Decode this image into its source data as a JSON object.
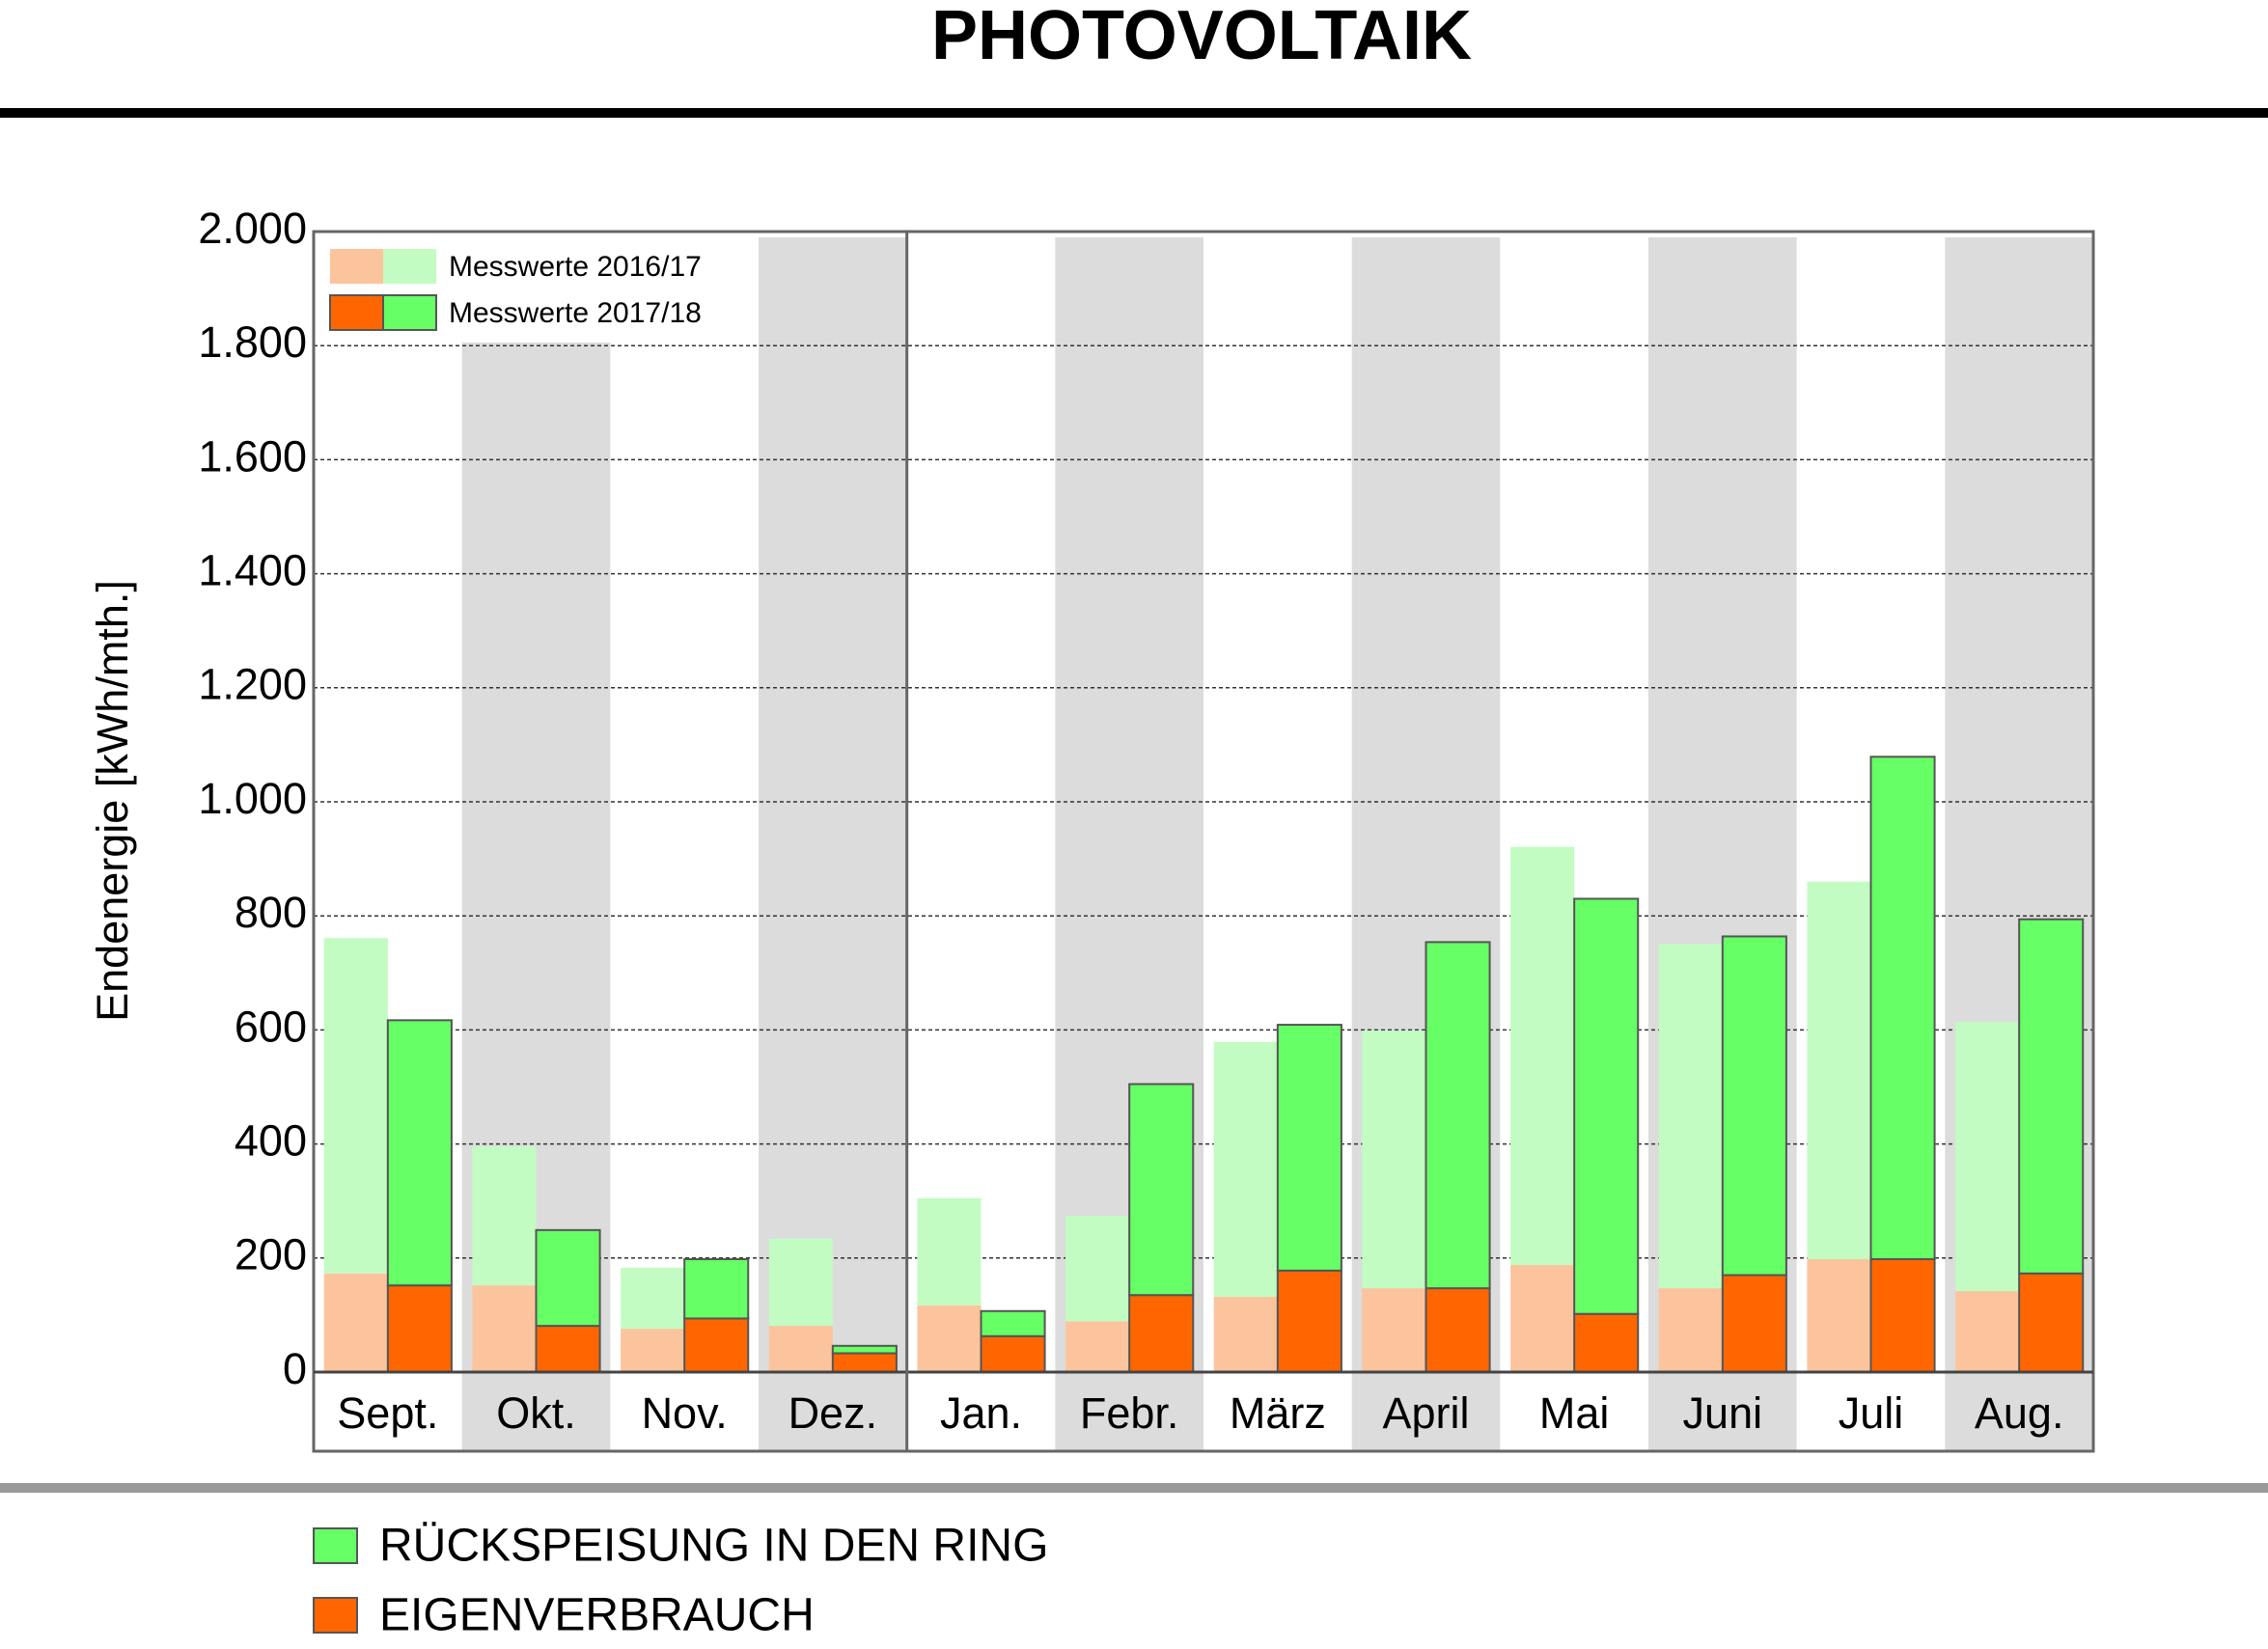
{
  "chart_data": {
    "type": "stacked-bar-pairs",
    "title": "PHOTOVOLTAIK",
    "y_label": "Endenergie [kWh/mth.]",
    "categories": [
      "Sept.",
      "Okt.",
      "Nov.",
      "Dez.",
      "Jan.",
      "Febr.",
      "März",
      "April",
      "Mai",
      "Juni",
      "Juli",
      "Aug."
    ],
    "segment_names": [
      "EIGENVERBRAUCH",
      "RÜCKSPEISUNG IN DEN RING"
    ],
    "groups": [
      {
        "name": "Messwerte 2016/17",
        "segments": [
          {
            "color": "#fcc49c",
            "values": [
              173,
              152,
              76,
              81,
              117,
              89,
              132,
              147,
              188,
              147,
              198,
              142
            ]
          },
          {
            "color": "#c2fcc2",
            "values": [
              588,
              244,
              107,
              153,
              188,
              185,
              447,
              452,
              733,
              604,
              662,
              472
            ]
          }
        ]
      },
      {
        "name": "Messwerte 2017/18",
        "segments": [
          {
            "color": "#ff6600",
            "values": [
              152,
              81,
              94,
              33,
              63,
              135,
              178,
              147,
              102,
              170,
              198,
              173
            ]
          },
          {
            "color": "#66ff66",
            "values": [
              465,
              168,
              104,
              13,
              44,
              370,
              431,
              607,
              728,
              594,
              881,
              621
            ]
          }
        ]
      }
    ],
    "ylim": [
      0,
      2000
    ],
    "yticks": [
      0,
      200,
      400,
      600,
      800,
      {
        "value": 1000,
        "label": "1.000"
      },
      {
        "value": 1200,
        "label": "1.200"
      },
      {
        "value": 1400,
        "label": "1.400"
      },
      {
        "value": 1600,
        "label": "1.600"
      },
      {
        "value": 1800,
        "label": "1.800"
      },
      {
        "value": 2000,
        "label": "2.000"
      }
    ],
    "grid": true
  }
}
